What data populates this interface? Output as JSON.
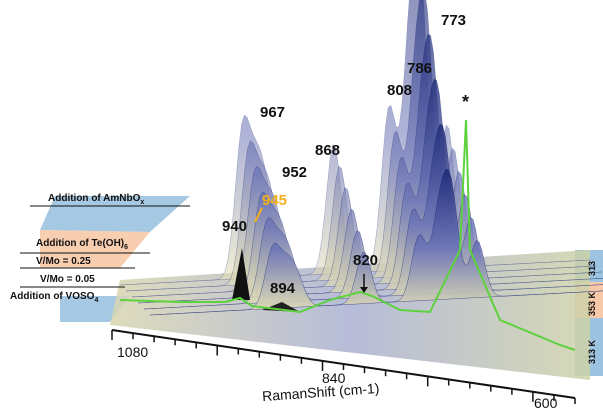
{
  "chart_data": {
    "type": "area",
    "xlabel": "RamanShift (cm-1)",
    "x_ticks": [
      "1080",
      "840",
      "600"
    ],
    "xlim": [
      1100,
      590
    ],
    "peak_labels": [
      "773",
      "786",
      "808",
      "967",
      "952",
      "868",
      "945",
      "940",
      "894",
      "820",
      "*"
    ],
    "left_annotations": [
      {
        "text": "Addition of AmNbO",
        "sub": "x"
      },
      {
        "text": "Addition of Te(OH)",
        "sub": "6"
      },
      {
        "text": "V/Mo = 0.25",
        "sub": ""
      },
      {
        "text": "V/Mo = 0.05",
        "sub": ""
      },
      {
        "text": "Addition of VOSO",
        "sub": "4"
      }
    ],
    "right_labels": [
      "313",
      "353 K",
      "313 K"
    ],
    "series": [
      {
        "peaks": [
          [
            967,
            0.55
          ],
          [
            952,
            0.35
          ],
          [
            940,
            0.25
          ],
          [
            868,
            0.5
          ],
          [
            808,
            0.62
          ],
          [
            786,
            0.78
          ],
          [
            773,
            0.95
          ],
          [
            745,
            0.55
          ]
        ]
      }
    ],
    "colors": {
      "surface": "#2e3a8c",
      "surface_light": "#e8e3b0",
      "highlight_945": "#f2b01e",
      "trace_green": "#5cd23c",
      "band_blue": "#9cc3e0",
      "band_peach": "#f7c9a8"
    }
  }
}
